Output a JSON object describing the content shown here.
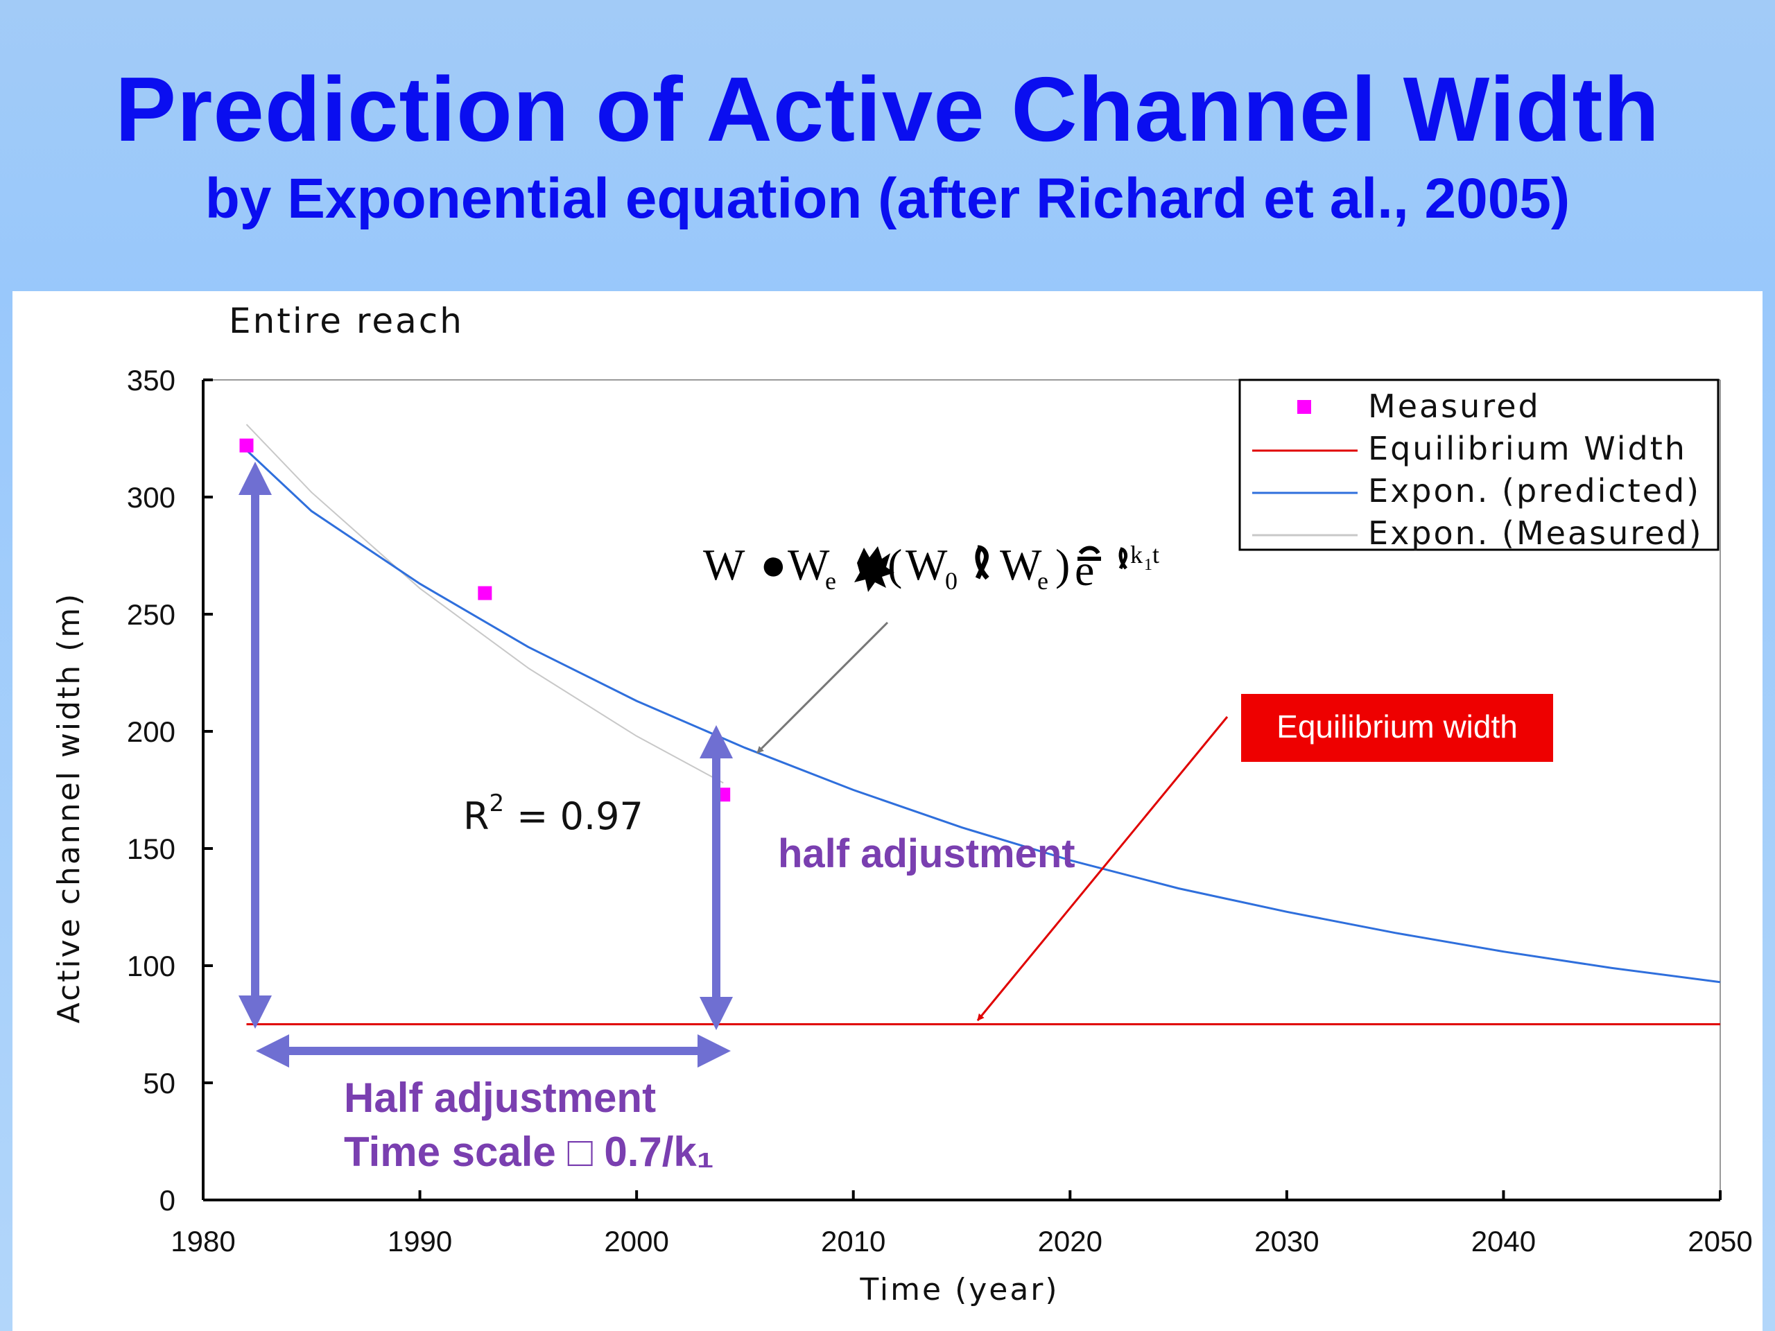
{
  "slide": {
    "title": "Prediction of Active Channel Width",
    "subtitle": "by Exponential equation (after Richard et al., 2005)"
  },
  "chart_data": {
    "type": "line",
    "title": "Entire reach",
    "xlabel": "Time (year)",
    "ylabel": "Active channel width (m)",
    "xlim": [
      1980,
      2050
    ],
    "ylim": [
      0,
      350
    ],
    "xticks": [
      1980,
      1990,
      2000,
      2010,
      2020,
      2030,
      2040,
      2050
    ],
    "yticks": [
      0,
      50,
      100,
      150,
      200,
      250,
      300,
      350
    ],
    "grid": false,
    "legend_position": "top-right",
    "series": [
      {
        "name": "Measured",
        "kind": "scatter",
        "color": "#ff00ff",
        "x": [
          1982,
          1993,
          2004
        ],
        "y": [
          322,
          259,
          173
        ]
      },
      {
        "name": "Equilibrium Width",
        "kind": "line",
        "color": "#e00000",
        "x": [
          1982,
          2050
        ],
        "y": [
          75,
          75
        ]
      },
      {
        "name": "Expon. (predicted)",
        "kind": "line",
        "color": "#2f6fdc",
        "x": [
          1982,
          1985,
          1990,
          1995,
          2000,
          2005,
          2010,
          2015,
          2020,
          2025,
          2030,
          2035,
          2040,
          2045,
          2050
        ],
        "y": [
          320,
          294,
          263,
          236,
          213,
          193,
          175,
          159,
          145,
          133,
          123,
          114,
          106,
          99,
          93
        ]
      },
      {
        "name": "Expon. (Measured)",
        "kind": "line",
        "color": "#c8c8c8",
        "x": [
          1982,
          1985,
          1990,
          1995,
          2000,
          2004
        ],
        "y": [
          331,
          302,
          261,
          227,
          198,
          178
        ]
      }
    ],
    "annotations": {
      "r_squared_label": "R",
      "r_squared_exp": "2",
      "r_squared_value": "= 0.97",
      "half_adjustment": "half adjustment",
      "time_scale_line1": "Half adjustment",
      "time_scale_line2": "Time scale □ 0.7/k₁",
      "equilibrium_box": "Equilibrium width",
      "equation_parts": [
        "W",
        "●",
        "W",
        "e",
        "W",
        "0",
        "W",
        "e",
        "k",
        "1",
        "t"
      ]
    },
    "colors": {
      "arrow": "#6f6fd2",
      "eq_box": "#ee0000",
      "purple_text": "#7a3fb0"
    }
  }
}
